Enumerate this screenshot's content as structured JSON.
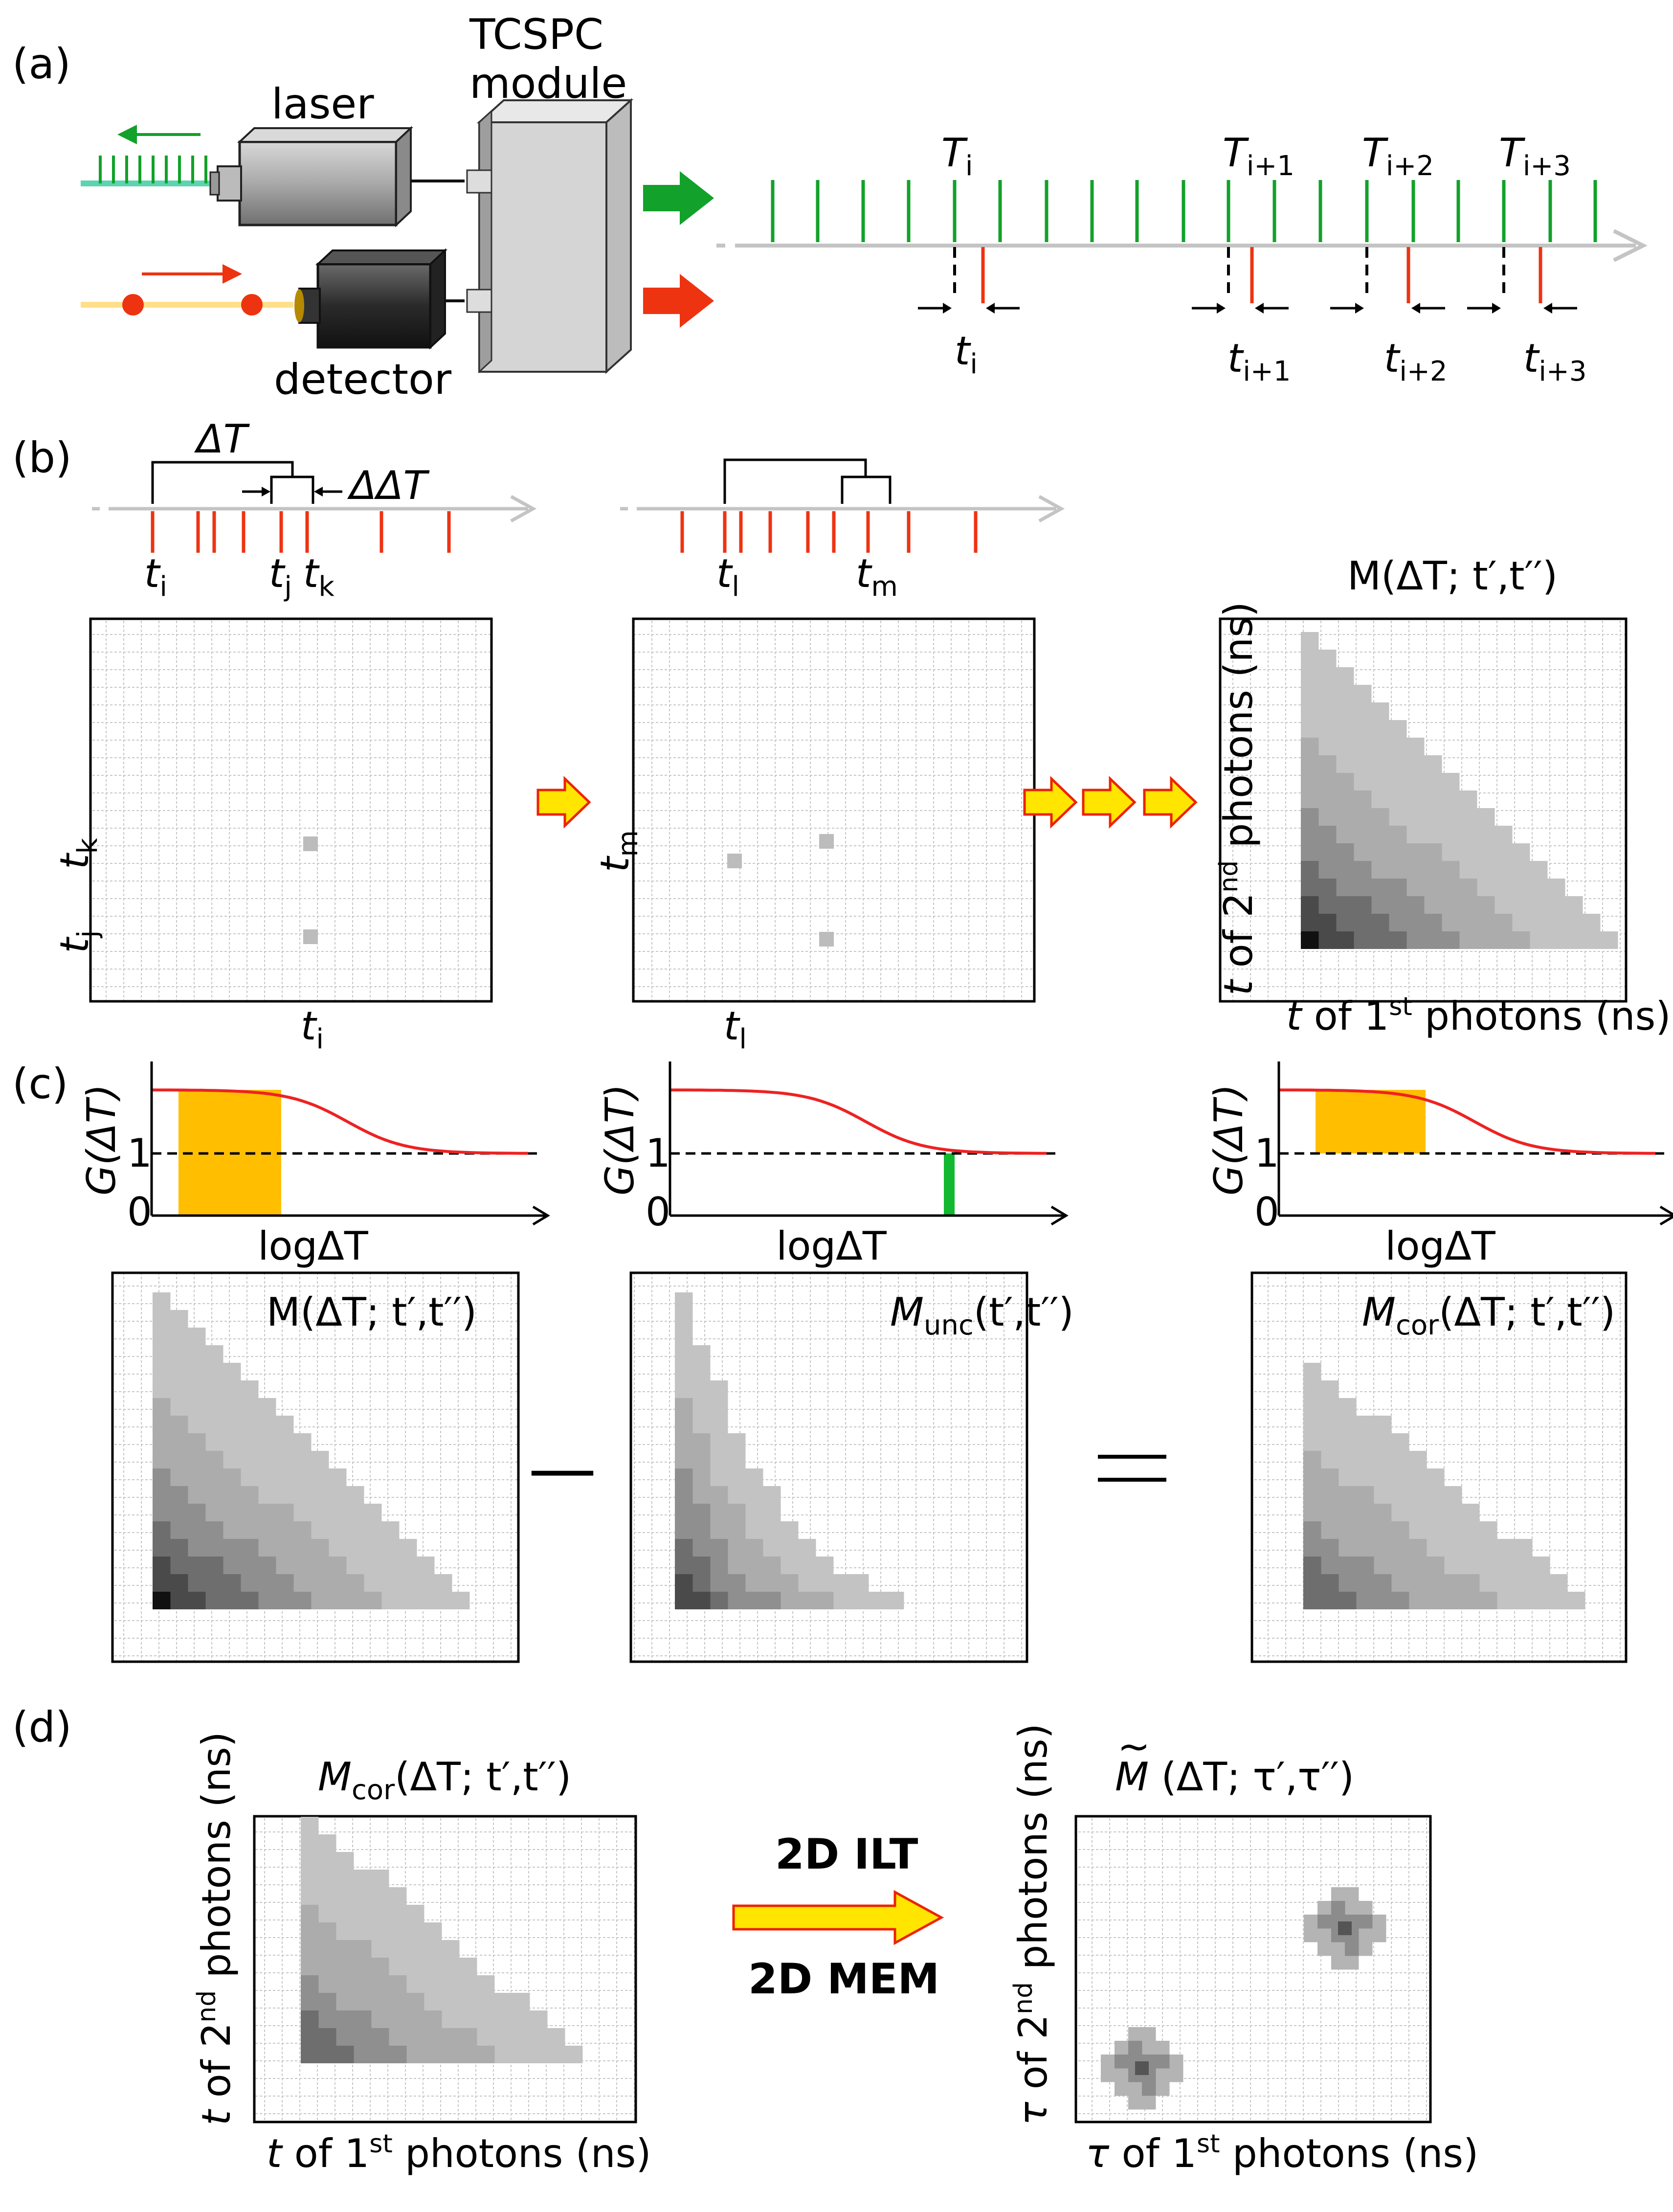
{
  "panels": {
    "a": {
      "label": "(a)",
      "laser": "laser",
      "detector": "detector",
      "module": [
        "TCSPC",
        "module"
      ],
      "macro_labels": [
        {
          "base": "T",
          "sub": "i"
        },
        {
          "base": "T",
          "sub": "i+1"
        },
        {
          "base": "T",
          "sub": "i+2"
        },
        {
          "base": "T",
          "sub": "i+3"
        }
      ],
      "micro_labels": [
        {
          "base": "t",
          "sub": "i"
        },
        {
          "base": "t",
          "sub": "i+1"
        },
        {
          "base": "t",
          "sub": "i+2"
        },
        {
          "base": "t",
          "sub": "i+3"
        }
      ]
    },
    "b": {
      "label": "(b)",
      "delta_T": "ΔT",
      "delta_delta_T": "ΔΔT",
      "timeline1_labels": [
        {
          "base": "t",
          "sub": "i"
        },
        {
          "base": "t",
          "sub": "j"
        },
        {
          "base": "t",
          "sub": "k"
        }
      ],
      "timeline2_labels": [
        {
          "base": "t",
          "sub": "l"
        },
        {
          "base": "t",
          "sub": "m"
        }
      ],
      "map1_x": {
        "base": "t",
        "sub": "i"
      },
      "map1_y": [
        {
          "base": "t",
          "sub": "k"
        },
        {
          "base": "t",
          "sub": "j"
        }
      ],
      "map2_x": {
        "base": "t",
        "sub": "l"
      },
      "map2_y": {
        "base": "t",
        "sub": "m"
      },
      "map3_title": "M(ΔT; t′,t′′)",
      "map3_xlabel": {
        "pre": "t",
        "mid": " of 1",
        "sup": "st",
        "post": " photons (ns)"
      },
      "map3_ylabel": {
        "pre": "t",
        "mid": " of 2",
        "sup": "nd",
        "post": " photons (ns)"
      }
    },
    "c": {
      "label": "(c)",
      "g_ylabel": "G(ΔT)",
      "g_xlabel": "logΔT",
      "g_ticks": [
        "1",
        "0"
      ],
      "minus": "—",
      "map1_title": "M(ΔT; t′,t′′)",
      "map2_title": {
        "base": "M",
        "sub": "unc",
        "rest": "(t′,t′′)"
      },
      "map3_title": {
        "base": "M",
        "sub": "cor",
        "rest": "(ΔT; t′,t′′)"
      }
    },
    "d": {
      "label": "(d)",
      "left_title": {
        "base": "M",
        "sub": "cor",
        "rest": "(ΔT; t′,t′′)"
      },
      "right_title": {
        "base": "M",
        "tilde": "~",
        "rest": " (ΔT; τ′,τ′′)"
      },
      "method1": "2D ILT",
      "method2": "2D MEM",
      "left_xlabel": {
        "pre": "t",
        "mid": " of 1",
        "sup": "st",
        "post": " photons (ns)"
      },
      "left_ylabel": {
        "pre": "t",
        "mid": " of 2",
        "sup": "nd",
        "post": " photons (ns)"
      },
      "right_xlabel": {
        "pre": "τ",
        "mid": " of 1",
        "sup": "st",
        "post": " photons (ns)"
      },
      "right_ylabel": {
        "pre": "τ",
        "mid": " of 2",
        "sup": "nd",
        "post": " photons (ns)"
      }
    }
  },
  "colors": {
    "green": "#12a12a",
    "red": "#ee3311",
    "orange": "#ffbf00",
    "grid": "#c8c8c8",
    "timeline": "#c4c4c4"
  }
}
